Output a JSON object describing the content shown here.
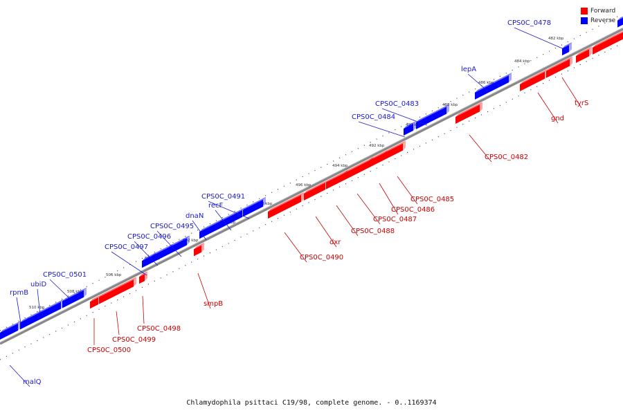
{
  "caption": "Chlamydophila psittaci C19/98, complete genome. - 0..1169374",
  "legend": [
    {
      "label": "Forward",
      "color": "#ff0000"
    },
    {
      "label": "Reverse",
      "color": "#0000ff"
    }
  ],
  "colors": {
    "forward": "#ff0000",
    "reverse": "#0000ff",
    "label_forward": "#cc0000",
    "label_reverse": "#1a1acc",
    "backbone": "#888888"
  },
  "ticks": [
    "482 kbp",
    "484 kbp",
    "486 kbp",
    "488 kbp",
    "490 kbp",
    "492 kbp",
    "494 kbp",
    "496 kbp",
    "498 kbp",
    "500 kbp",
    "502 kbp",
    "504 kbp",
    "506 kbp",
    "508 kbp",
    "510 kbp"
  ],
  "genes": [
    {
      "label": "CPS0C_0478",
      "strand": "reverse"
    },
    {
      "label": "lepA",
      "strand": "reverse"
    },
    {
      "label": "CPS0C_0483",
      "strand": "reverse"
    },
    {
      "label": "CPS0C_0484",
      "strand": "reverse"
    },
    {
      "label": "CPS0C_0491",
      "strand": "reverse"
    },
    {
      "label": "recF",
      "strand": "reverse"
    },
    {
      "label": "dnaN",
      "strand": "reverse"
    },
    {
      "label": "CPS0C_0495",
      "strand": "reverse"
    },
    {
      "label": "CPS0C_0496",
      "strand": "reverse"
    },
    {
      "label": "CPS0C_0497",
      "strand": "reverse"
    },
    {
      "label": "CPS0C_0501",
      "strand": "reverse"
    },
    {
      "label": "ubiD",
      "strand": "reverse"
    },
    {
      "label": "rpmB",
      "strand": "reverse"
    },
    {
      "label": "malQ",
      "strand": "reverse"
    },
    {
      "label": "tyrS",
      "strand": "forward"
    },
    {
      "label": "gnd",
      "strand": "forward"
    },
    {
      "label": "CPS0C_0482",
      "strand": "forward"
    },
    {
      "label": "CPS0C_0485",
      "strand": "forward"
    },
    {
      "label": "CPS0C_0486",
      "strand": "forward"
    },
    {
      "label": "CPS0C_0487",
      "strand": "forward"
    },
    {
      "label": "CPS0C_0488",
      "strand": "forward"
    },
    {
      "label": "dxr",
      "strand": "forward"
    },
    {
      "label": "CPS0C_0490",
      "strand": "forward"
    },
    {
      "label": "smpB",
      "strand": "forward"
    },
    {
      "label": "CPS0C_0498",
      "strand": "forward"
    },
    {
      "label": "CPS0C_0499",
      "strand": "forward"
    },
    {
      "label": "CPS0C_0500",
      "strand": "forward"
    }
  ]
}
